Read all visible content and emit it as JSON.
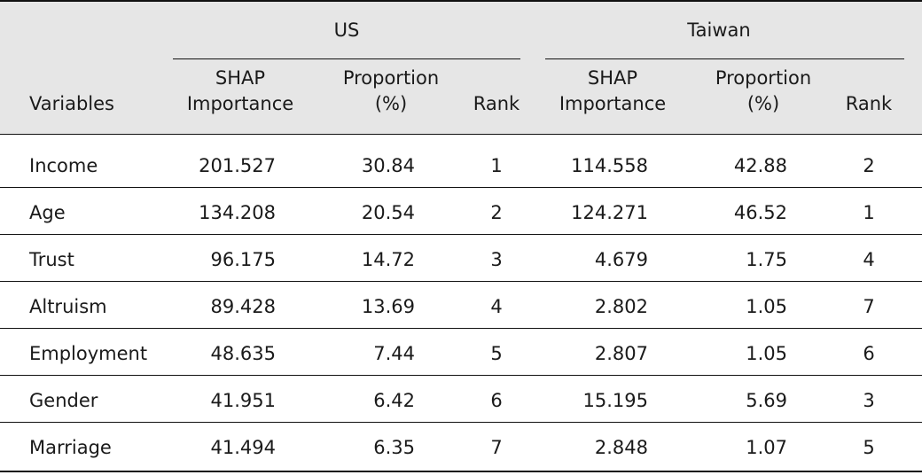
{
  "table": {
    "groups": [
      "US",
      "Taiwan"
    ],
    "variables_header": "Variables",
    "subheaders": [
      [
        "SHAP",
        "Importance"
      ],
      [
        "Proportion",
        "(%)"
      ],
      [
        "Rank"
      ]
    ],
    "rows": [
      {
        "variable": "Income",
        "us": [
          "201.527",
          "30.84",
          "1"
        ],
        "tw": [
          "114.558",
          "42.88",
          "2"
        ]
      },
      {
        "variable": "Age",
        "us": [
          "134.208",
          "20.54",
          "2"
        ],
        "tw": [
          "124.271",
          "46.52",
          "1"
        ]
      },
      {
        "variable": "Trust",
        "us": [
          "96.175",
          "14.72",
          "3"
        ],
        "tw": [
          "4.679",
          "1.75",
          "4"
        ]
      },
      {
        "variable": "Altruism",
        "us": [
          "89.428",
          "13.69",
          "4"
        ],
        "tw": [
          "2.802",
          "1.05",
          "7"
        ]
      },
      {
        "variable": "Employment",
        "us": [
          "48.635",
          "7.44",
          "5"
        ],
        "tw": [
          "2.807",
          "1.05",
          "6"
        ]
      },
      {
        "variable": "Gender",
        "us": [
          "41.951",
          "6.42",
          "6"
        ],
        "tw": [
          "15.195",
          "5.69",
          "3"
        ]
      },
      {
        "variable": "Marriage",
        "us": [
          "41.494",
          "6.35",
          "7"
        ],
        "tw": [
          "2.848",
          "1.07",
          "5"
        ]
      }
    ]
  }
}
